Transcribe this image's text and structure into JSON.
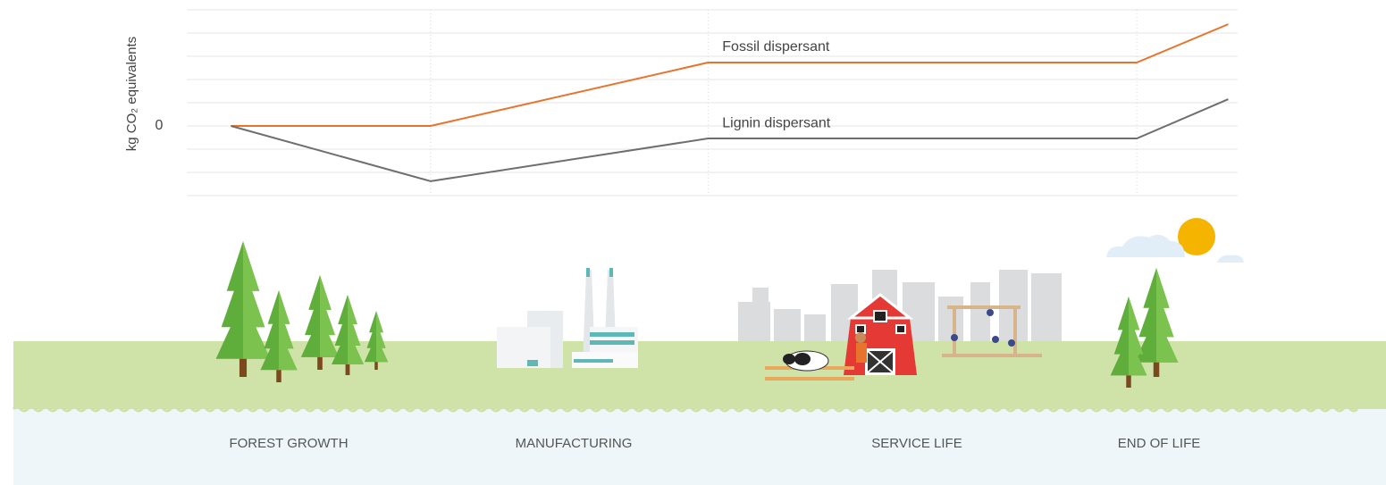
{
  "chart_data": {
    "type": "line",
    "y_label": "kg CO₂ equivalents",
    "x": [
      4.2,
      23.2,
      49.6,
      90.4,
      99.1
    ],
    "xlim": [
      0,
      100
    ],
    "series": [
      {
        "name": "Fossil dispersant",
        "color": "#e8732c",
        "values": [
          0,
          0,
          2.73,
          2.73,
          4.38
        ]
      },
      {
        "name": "Lignin dispersant",
        "color": "#6e6e6e",
        "values": [
          0,
          -2.38,
          -0.54,
          -0.54,
          1.15
        ]
      }
    ],
    "ylim": [
      -3,
      5
    ],
    "yticks": [
      0
    ],
    "ygrid": [
      -3,
      -2,
      -1,
      0,
      1,
      2,
      3,
      4,
      5
    ]
  },
  "stages": [
    "FOREST GROWTH",
    "MANUFACTURING",
    "SERVICE LIFE",
    "END OF LIFE"
  ]
}
